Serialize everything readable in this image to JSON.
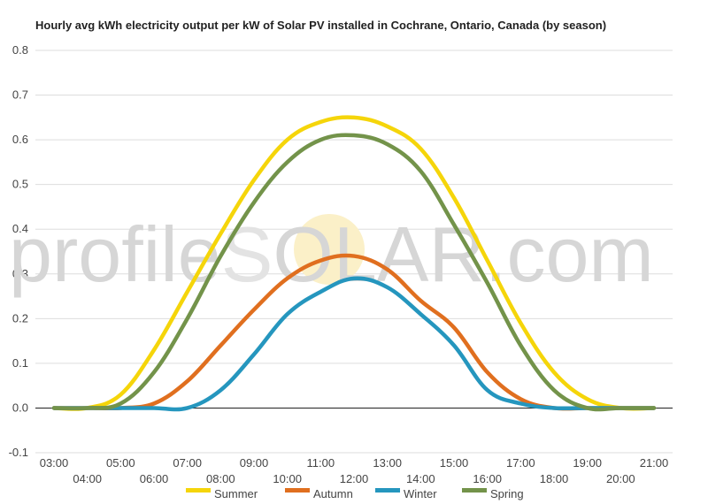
{
  "chart_data": {
    "type": "line",
    "title": "Hourly avg kWh electricity output per kW of Solar PV installed in Cochrane, Ontario, Canada (by season)",
    "xlabel": "",
    "ylabel": "",
    "ylim": [
      -0.1,
      0.8
    ],
    "yticks": [
      "-0.1",
      "0.0",
      "0.1",
      "0.2",
      "0.3",
      "0.4",
      "0.5",
      "0.6",
      "0.7",
      "0.8"
    ],
    "categories": [
      "03:00",
      "04:00",
      "05:00",
      "06:00",
      "07:00",
      "08:00",
      "09:00",
      "10:00",
      "11:00",
      "12:00",
      "13:00",
      "14:00",
      "15:00",
      "16:00",
      "17:00",
      "18:00",
      "19:00",
      "20:00",
      "21:00"
    ],
    "grid": true,
    "legend_position": "bottom",
    "series": [
      {
        "name": "Summer",
        "color": "#f5d50a",
        "values": [
          0,
          0,
          0.03,
          0.13,
          0.26,
          0.39,
          0.51,
          0.6,
          0.64,
          0.65,
          0.63,
          0.58,
          0.47,
          0.33,
          0.19,
          0.08,
          0.02,
          0,
          0
        ]
      },
      {
        "name": "Autumn",
        "color": "#e06f1f",
        "values": [
          0,
          0,
          0,
          0.01,
          0.06,
          0.14,
          0.22,
          0.29,
          0.33,
          0.34,
          0.31,
          0.24,
          0.18,
          0.08,
          0.02,
          0,
          0,
          0,
          0
        ]
      },
      {
        "name": "Winter",
        "color": "#2596be",
        "values": [
          0,
          0,
          0,
          0,
          0,
          0.04,
          0.12,
          0.21,
          0.26,
          0.29,
          0.27,
          0.21,
          0.14,
          0.04,
          0.01,
          0,
          0,
          0,
          0
        ]
      },
      {
        "name": "Spring",
        "color": "#73934a",
        "values": [
          0,
          0,
          0.01,
          0.08,
          0.2,
          0.34,
          0.46,
          0.55,
          0.6,
          0.61,
          0.59,
          0.53,
          0.41,
          0.28,
          0.14,
          0.04,
          0,
          0,
          0
        ]
      }
    ]
  },
  "watermark": {
    "text_before": "profile",
    "sun_letter": "S",
    "text_after": "OLAR.com"
  }
}
